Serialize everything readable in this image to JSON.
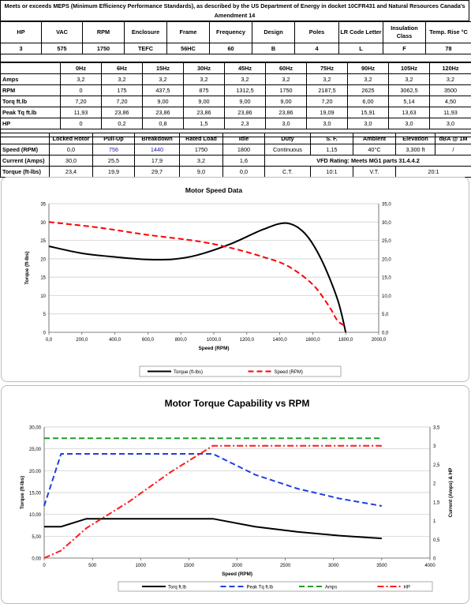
{
  "header_note": "Meets or exceeds MEPS (Minimum Efficiency Performance Standards), as described by the US Department of Energy in docket 10CFR431 and Natural Resources Canada's Amendment 14",
  "specs": {
    "headers": [
      "HP",
      "VAC",
      "RPM",
      "Enclosure",
      "Frame",
      "Frequency",
      "Design",
      "Poles",
      "LR Code Letter",
      "Insulation Class",
      "Temp. Rise °C"
    ],
    "values": [
      "3",
      "575",
      "1750",
      "TEFC",
      "56HC",
      "60",
      "B",
      "4",
      "L",
      "F",
      "78"
    ]
  },
  "freq_table": {
    "headers": [
      "0Hz",
      "6Hz",
      "15Hz",
      "30Hz",
      "45Hz",
      "60Hz",
      "75Hz",
      "90Hz",
      "105Hz",
      "120Hz"
    ],
    "rows": [
      {
        "label": "Amps",
        "values": [
          "3,2",
          "3,2",
          "3,2",
          "3,2",
          "3,2",
          "3,2",
          "3,2",
          "3,2",
          "3,2",
          "3,2"
        ]
      },
      {
        "label": "RPM",
        "values": [
          "0",
          "175",
          "437,5",
          "875",
          "1312,5",
          "1750",
          "2187,5",
          "2625",
          "3062,5",
          "3500"
        ]
      },
      {
        "label": "Torq ft.lb",
        "values": [
          "7,20",
          "7,20",
          "9,00",
          "9,00",
          "9,00",
          "9,00",
          "7,20",
          "6,00",
          "5,14",
          "4,50"
        ]
      },
      {
        "label": "Peak Tq ft.lb",
        "values": [
          "11,93",
          "23,86",
          "23,86",
          "23,86",
          "23,86",
          "23,86",
          "19,09",
          "15,91",
          "13,63",
          "11,93"
        ]
      },
      {
        "label": "HP",
        "values": [
          "0",
          "0,2",
          "0,8",
          "1,5",
          "2,3",
          "3,0",
          "3,0",
          "3,0",
          "3,0",
          "3,0"
        ]
      }
    ]
  },
  "perf_table": {
    "headers": [
      "Locked Rotor",
      "Pull-Up",
      "Breakdown",
      "Rated Load",
      "Idle"
    ],
    "rows": [
      {
        "label": "Speed (RPM)",
        "values": [
          "0,0",
          "756",
          "1440",
          "1750",
          "1800"
        ]
      },
      {
        "label": "Current (Amps)",
        "values": [
          "30,0",
          "25,5",
          "17,9",
          "3,2",
          "1,6"
        ]
      },
      {
        "label": "Torque (ft-lbs)",
        "values": [
          "23,4",
          "19,9",
          "29,7",
          "9,0",
          "0,0"
        ]
      }
    ],
    "side_headers": [
      "Duty",
      "S. F.",
      "Ambient",
      "Elevation",
      "dBA @ 1M"
    ],
    "side_row1": [
      "Continuous",
      "1,15",
      "40°C",
      "3,300 ft",
      "/"
    ],
    "vfd_rating": "VFD Rating: Meets MG1 parts 31.4.4.2",
    "side_row3": [
      "C.T.",
      "10:1",
      "V.T.",
      "20:1"
    ]
  },
  "chart_data": [
    {
      "type": "line",
      "title": "Motor Speed Data",
      "xlabel": "Speed (RPM)",
      "ylabel": "Torque (ft-lbs)",
      "xlim": [
        0,
        2000
      ],
      "ylim": [
        0,
        35
      ],
      "y2lim": [
        0,
        35
      ],
      "xticks": [
        "0,0",
        "200,0",
        "400,0",
        "600,0",
        "800,0",
        "1000,0",
        "1200,0",
        "1400,0",
        "1600,0",
        "1800,0",
        "2000,0"
      ],
      "yticks": [
        "0",
        "5",
        "10",
        "15",
        "20",
        "25",
        "30",
        "35"
      ],
      "y2ticks": [
        "0,0",
        "5,0",
        "10,0",
        "15,0",
        "20,0",
        "25,0",
        "30,0",
        "35,0"
      ],
      "legend_position": "bottom",
      "series": [
        {
          "name": "Torque (ft-lbs)",
          "color": "#000000",
          "dash": "solid",
          "axis": "left",
          "points": [
            [
              0,
              23.4
            ],
            [
              200,
              21.5
            ],
            [
              400,
              20.5
            ],
            [
              600,
              19.8
            ],
            [
              756,
              19.9
            ],
            [
              900,
              21.0
            ],
            [
              1100,
              24.0
            ],
            [
              1300,
              28.0
            ],
            [
              1440,
              29.7
            ],
            [
              1550,
              27.0
            ],
            [
              1650,
              20.0
            ],
            [
              1750,
              9.0
            ],
            [
              1800,
              0.0
            ]
          ]
        },
        {
          "name": "Speed (RPM)",
          "color": "#ff0000",
          "dash": "dashed",
          "axis": "right",
          "points": [
            [
              0,
              30.0
            ],
            [
              300,
              28.5
            ],
            [
              600,
              26.5
            ],
            [
              900,
              24.8
            ],
            [
              1100,
              23.0
            ],
            [
              1300,
              20.5
            ],
            [
              1450,
              18.0
            ],
            [
              1600,
              13.0
            ],
            [
              1700,
              7.0
            ],
            [
              1750,
              3.2
            ],
            [
              1800,
              1.6
            ]
          ]
        }
      ]
    },
    {
      "type": "line",
      "title": "Motor Torque Capability vs RPM",
      "xlabel": "Speed (RPM)",
      "ylabel": "Torque (ft-lbs)",
      "y2label": "Current (Amps) & HP",
      "xlim": [
        0,
        4000
      ],
      "ylim": [
        0,
        30
      ],
      "y2lim": [
        0,
        3.5
      ],
      "xticks": [
        "0",
        "500",
        "1000",
        "1500",
        "2000",
        "2500",
        "3000",
        "3500",
        "4000"
      ],
      "yticks": [
        "0,00",
        "5,00",
        "10,00",
        "15,00",
        "20,00",
        "25,00",
        "30,00"
      ],
      "y2ticks": [
        "0",
        "0,5",
        "1",
        "1,5",
        "2",
        "2,5",
        "3",
        "3,5"
      ],
      "legend_position": "bottom",
      "series": [
        {
          "name": "Torq ft.lb",
          "color": "#000000",
          "dash": "solid",
          "axis": "left",
          "points": [
            [
              0,
              7.2
            ],
            [
              175,
              7.2
            ],
            [
              437.5,
              9.0
            ],
            [
              875,
              9.0
            ],
            [
              1312.5,
              9.0
            ],
            [
              1750,
              9.0
            ],
            [
              2187.5,
              7.2
            ],
            [
              2625,
              6.0
            ],
            [
              3062.5,
              5.14
            ],
            [
              3500,
              4.5
            ]
          ]
        },
        {
          "name": "Peak Tq ft.lb",
          "color": "#1f3fe0",
          "dash": "dashed",
          "axis": "left",
          "points": [
            [
              0,
              11.93
            ],
            [
              175,
              23.86
            ],
            [
              437.5,
              23.86
            ],
            [
              875,
              23.86
            ],
            [
              1312.5,
              23.86
            ],
            [
              1750,
              23.86
            ],
            [
              2187.5,
              19.09
            ],
            [
              2625,
              15.91
            ],
            [
              3062.5,
              13.63
            ],
            [
              3500,
              11.93
            ]
          ]
        },
        {
          "name": "Amps",
          "color": "#1e9e2a",
          "dash": "dashed",
          "axis": "right",
          "points": [
            [
              0,
              3.2
            ],
            [
              175,
              3.2
            ],
            [
              437.5,
              3.2
            ],
            [
              875,
              3.2
            ],
            [
              1312.5,
              3.2
            ],
            [
              1750,
              3.2
            ],
            [
              2187.5,
              3.2
            ],
            [
              2625,
              3.2
            ],
            [
              3062.5,
              3.2
            ],
            [
              3500,
              3.2
            ]
          ]
        },
        {
          "name": "HP",
          "color": "#ff1a1a",
          "dash": "dashdot",
          "axis": "right",
          "points": [
            [
              0,
              0
            ],
            [
              175,
              0.2
            ],
            [
              437.5,
              0.8
            ],
            [
              875,
              1.5
            ],
            [
              1312.5,
              2.3
            ],
            [
              1750,
              3.0
            ],
            [
              2187.5,
              3.0
            ],
            [
              2625,
              3.0
            ],
            [
              3062.5,
              3.0
            ],
            [
              3500,
              3.0
            ]
          ]
        }
      ]
    }
  ]
}
